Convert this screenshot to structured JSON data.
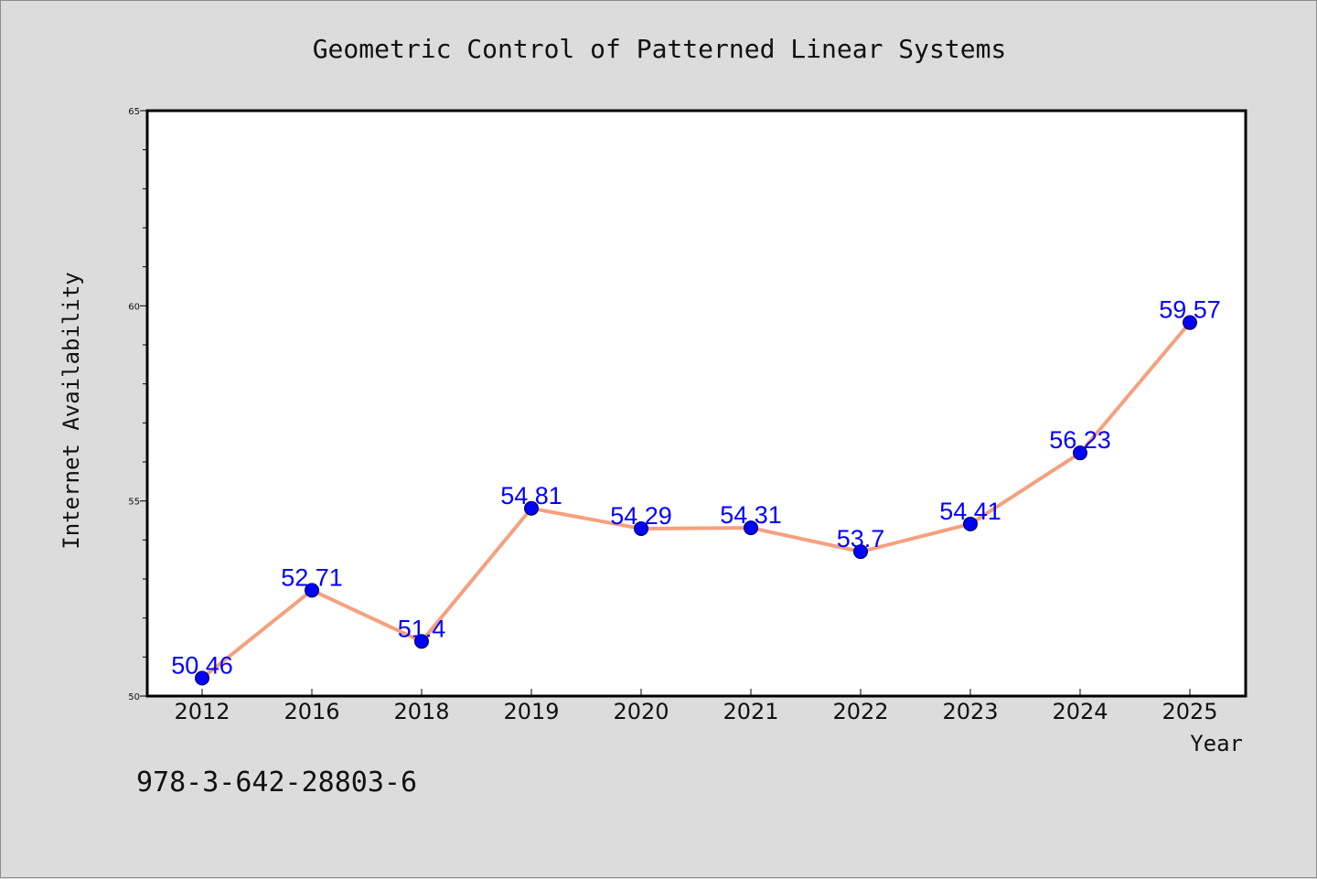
{
  "chart_data": {
    "type": "line",
    "title": "Geometric Control of Patterned Linear Systems",
    "xlabel": "Year",
    "ylabel": "Internet Availability",
    "categories": [
      "2012",
      "2016",
      "2018",
      "2019",
      "2020",
      "2021",
      "2022",
      "2023",
      "2024",
      "2025"
    ],
    "series": [
      {
        "values": [
          50.46,
          52.71,
          51.4,
          54.81,
          54.29,
          54.31,
          53.7,
          54.41,
          56.23,
          59.57
        ],
        "data_labels": [
          "50.46",
          "52.71",
          "51.4",
          "54.81",
          "54.29",
          "54.31",
          "53.7",
          "54.41",
          "56.23",
          "59.57"
        ],
        "line_color": "#f5a07e",
        "marker_color": "#0000ff",
        "label_color": "#0000ff"
      }
    ],
    "ylim": [
      50,
      65
    ],
    "yticks": [
      "50",
      "55",
      "60",
      "65"
    ],
    "grid": false,
    "legend": "none"
  },
  "footer": {
    "text": "978-3-642-28803-6"
  },
  "colors": {
    "background": "#dcdcdc",
    "plot_background": "#ffffff",
    "plot_border": "#000000"
  }
}
